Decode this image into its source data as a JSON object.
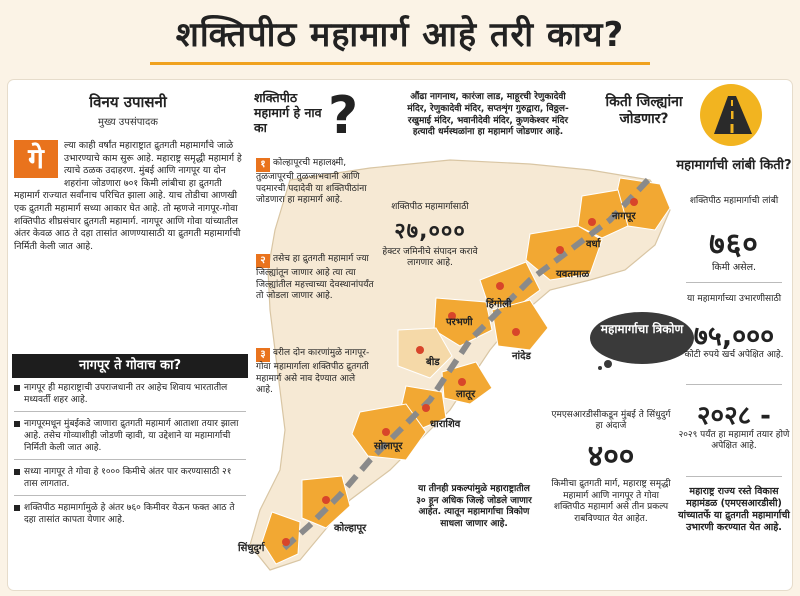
{
  "title": "शक्तिपीठ महामार्ग आहे तरी काय?",
  "author": {
    "name": "विनय उपासनी",
    "role": "मुख्य उपसंपादक"
  },
  "intro": {
    "dropcap": "गे",
    "text": "ल्या काही वर्षांत महाराष्ट्रात द्रुतगती महामार्गांचे जाळे उभारण्याचे काम सुरू आहे. महाराष्ट्र समृद्धी महामार्ग हे त्याचे ठळक उदाहरण. मुंबई आणि नागपूर या दोन शहरांना जोडणारा ७०१ किमी लांबीचा हा द्रुतगती महामार्ग राज्यात सर्वांनाच परिचित झाला आहे. याच तोडीचा आणखी एक द्रुतगती महामार्ग सध्या आकार घेत आहे. तो म्हणजे नागपूर-गोवा शक्तिपीठ शीघ्रसंचार द्रुतगती महामार्ग. नागपूर आणि गोवा यांच्यातील अंतर केवळ आठ ते दहा तासांत आणण्यासाठी या द्रुतगती महामार्गाची निर्मिती केली जात आहे."
  },
  "why_goa": {
    "heading": "नागपूर ते गोवाच का?",
    "bullets": [
      "नागपूर ही महाराष्ट्राची उपराजधानी तर आहेच शिवाय भारतातील मध्यवर्ती शहर आहे.",
      "नागपूरमधून मुंबईकडे जाणारा द्रुतगती महामार्ग आताशा तयार झाला आहे. तसेच गोव्याशीही जोडणी व्हावी, या उद्देशाने या महामार्गाची निर्मिती केली जात आहे.",
      "सध्या नागपूर ते गोवा हे १००० किमीचे अंतर पार करण्यासाठी २१ तास लागतात.",
      "शक्तिपीठ महामार्गामुळे हे अंतर ७६० किमीवर येऊन फक्त आठ ते दहा तासांत कापता येणार आहे."
    ]
  },
  "name_why": {
    "heading": "शक्तिपीठ महामार्ग हे नाव का",
    "qmark": "?",
    "reasons": [
      {
        "num": "१",
        "text": "कोल्हापूरची महालक्ष्मी, तुळजापूरची तुळजाभवानी आणि पदमारची पदादेवी या शक्तिपीठांना जोडणारा हा महामार्ग आहे."
      },
      {
        "num": "२",
        "text": "तसेच हा द्रुतगती महामार्ग ज्या जिल्ह्यांतून जाणार आहे त्या त्या जिल्ह्यांतील महत्त्वाच्या देवस्थानांपर्यंत तो जोडला जाणार आहे."
      },
      {
        "num": "३",
        "text": "वरील दोन कारणांमुळे नागपूर-गोवा महामार्गाला शक्तिपीठ द्रुतगती महामार्ग असे नाव देण्यात आले आहे."
      }
    ]
  },
  "temples_note": "औंढा नागनाथ, कारंजा लाड, माहूरची रेणुकादेवी मंदिर, रेणुकादेवी मंदिर, सप्तशृंग गुरुद्वारा, विठ्ठल-रखुमाई मंदिर, भवानीदेवी मंदिर, कुणकेश्वर मंदिर हत्यादी धर्मस्थळांना हा महामार्ग जोडणार आहे.",
  "districts_question": "किती जिल्ह्यांना जोडणार?",
  "length": {
    "heading": "महामार्गाची लांबी किती?",
    "sub": "शक्तिपीठ महामार्गाची लांबी",
    "value": "७६०",
    "unit": "किमी असेल."
  },
  "cost": {
    "sub": "या महामार्गाच्या उभारणीसाठी",
    "value": "७५,०००",
    "unit": "कोटी रुपये खर्च अपेक्षित आहे."
  },
  "year": {
    "value": "२०२८ -",
    "sub": "२०२९ पर्यंत हा महामार्ग तयार होणे अपेक्षित आहे."
  },
  "msrdc_note": "महाराष्ट्र राज्य रस्ते विकास महामंडळ (एमएसआरडीसी) यांच्यातर्फे या द्रुतगती महामार्गाची उभारणी करण्यात येत आहे.",
  "land": {
    "sub": "शक्तिपीठ महामार्गासाठी",
    "value": "२७,०००",
    "unit": "हेक्टर जमिनीचे संपादन करावे लागणार आहे."
  },
  "triangle_cloud": "महामार्गाचा त्रिकोण",
  "km400": {
    "sub": "एमएसआरडीसीकडून मुंबई ते सिंधुदुर्ग हा अंदाजे",
    "value": "४००",
    "desc": "किमीचा द्रुतगती मार्ग, महाराष्ट्र समृद्धी महामार्ग आणि नागपूर ते गोवा शक्तिपीठ महामार्ग असे तीन प्रकल्प राबविण्यात येत आहेत."
  },
  "triangle_note": "या तीनही प्रकल्पांमुळे महाराष्ट्रातील ३० हून अधिक जिल्हे जोडले जाणार आहेत. त्यातून महामार्गाचा त्रिकोण साधला जाणार आहे.",
  "map": {
    "labels": [
      "नागपूर",
      "वर्धा",
      "यवतमाळ",
      "हिंगोली",
      "परभणी",
      "नांदेड",
      "बीड",
      "लातूर",
      "धाराशिव",
      "सोलापूर",
      "कोल्हापूर",
      "सिंधुदुर्ग"
    ],
    "highlight_color": "#f2a833",
    "route_color": "#8a8a8a",
    "pin_color": "#d8452a"
  }
}
